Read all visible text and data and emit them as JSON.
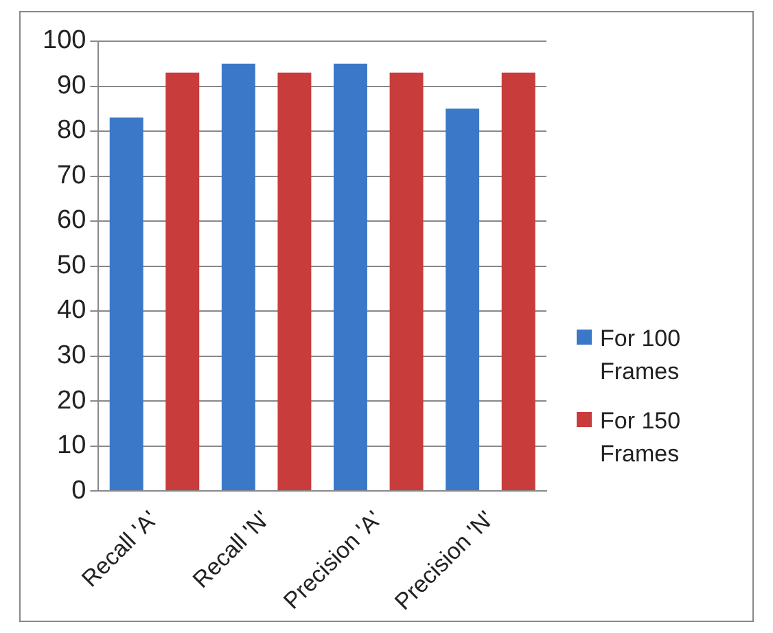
{
  "chart_data": {
    "type": "bar",
    "categories": [
      "Recall 'A'",
      "Recall 'N'",
      "Precision 'A'",
      "Precision 'N'"
    ],
    "series": [
      {
        "name": "For 100 Frames",
        "color": "#3c78c8",
        "values": [
          83,
          95,
          95,
          85
        ]
      },
      {
        "name": "For 150 Frames",
        "color": "#c83c3c",
        "values": [
          93,
          93,
          93,
          93
        ]
      }
    ],
    "ylim": [
      0,
      100
    ],
    "yticks": [
      0,
      10,
      20,
      30,
      40,
      50,
      60,
      70,
      80,
      90,
      100
    ],
    "grid": "y",
    "legend": "right"
  }
}
